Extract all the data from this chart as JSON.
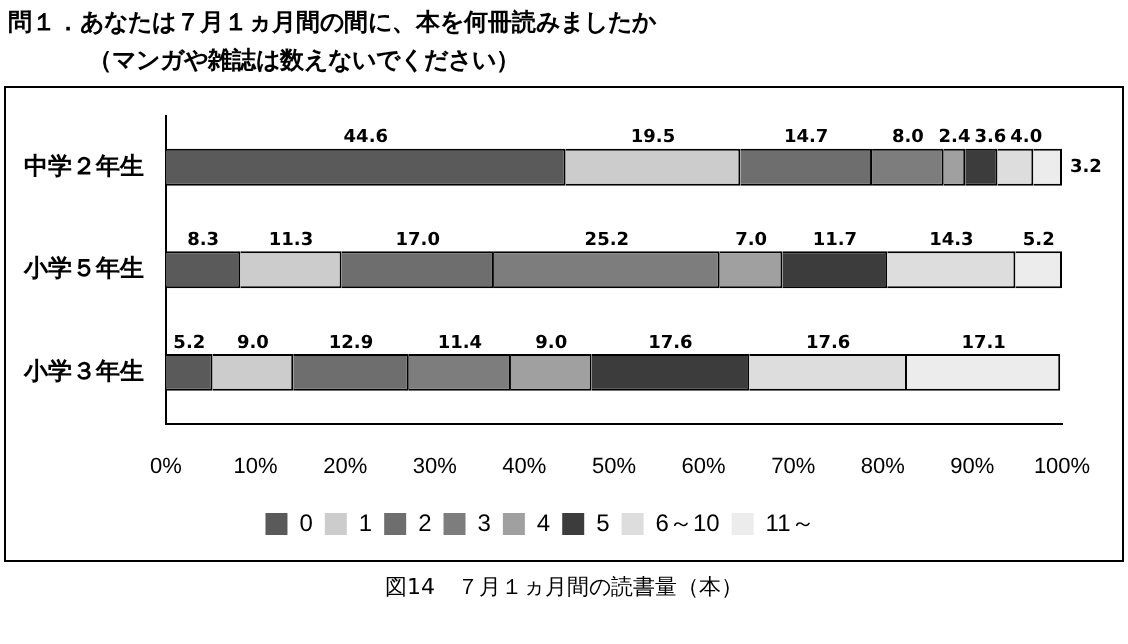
{
  "chart_data": {
    "type": "bar",
    "orientation": "horizontal",
    "stacked": true,
    "title": "問１．あなたは７月１ヵ月間の間に、本を何冊読みましたか",
    "subtitle": "（マンガや雑誌は数えないでください）",
    "categories": [
      "中学２年生",
      "小学５年生",
      "小学３年生"
    ],
    "series": [
      {
        "name": "0",
        "color": "#5a5a5a",
        "values": [
          44.6,
          8.3,
          5.2
        ],
        "value_labels": [
          "44.6",
          "8.3",
          "5.2"
        ]
      },
      {
        "name": "1",
        "color": "#cccccc",
        "values": [
          19.5,
          11.3,
          9.0
        ],
        "value_labels": [
          "19.5",
          "11.3",
          "9.0"
        ]
      },
      {
        "name": "2",
        "color": "#6e6e6e",
        "values": [
          14.7,
          17.0,
          12.9
        ],
        "value_labels": [
          "14.7",
          "17.0",
          "12.9"
        ]
      },
      {
        "name": "3",
        "color": "#7d7d7d",
        "values": [
          8.0,
          25.2,
          11.4
        ],
        "value_labels": [
          "8.0",
          "25.2",
          "11.4"
        ]
      },
      {
        "name": "4",
        "color": "#a0a0a0",
        "values": [
          2.4,
          7.0,
          9.0
        ],
        "value_labels": [
          "2.4",
          "7.0",
          "9.0"
        ]
      },
      {
        "name": "5",
        "color": "#3c3c3c",
        "values": [
          3.6,
          11.7,
          17.6
        ],
        "value_labels": [
          "3.6",
          "11.7",
          "17.6"
        ]
      },
      {
        "name": "6～10",
        "color": "#dddddd",
        "values": [
          4.0,
          14.3,
          17.6
        ],
        "value_labels": [
          "4.0",
          "14.3",
          "17.6"
        ]
      },
      {
        "name": "11～",
        "color": "#ececec",
        "values": [
          3.2,
          5.2,
          17.1
        ],
        "value_labels": [
          "3.2",
          "5.2",
          "17.1"
        ]
      }
    ],
    "xlim": [
      0,
      100
    ],
    "xticks": [
      {
        "value": 0,
        "label": "0%"
      },
      {
        "value": 10,
        "label": "10%"
      },
      {
        "value": 20,
        "label": "20%"
      },
      {
        "value": 30,
        "label": "30%"
      },
      {
        "value": 40,
        "label": "40%"
      },
      {
        "value": 50,
        "label": "50%"
      },
      {
        "value": 60,
        "label": "60%"
      },
      {
        "value": 70,
        "label": "70%"
      },
      {
        "value": 80,
        "label": "80%"
      },
      {
        "value": 90,
        "label": "90%"
      },
      {
        "value": 100,
        "label": "100%"
      }
    ],
    "grid": false,
    "legend": "bottom",
    "annotations": [
      "図14　７月１ヵ月間の読書量（本）"
    ]
  }
}
